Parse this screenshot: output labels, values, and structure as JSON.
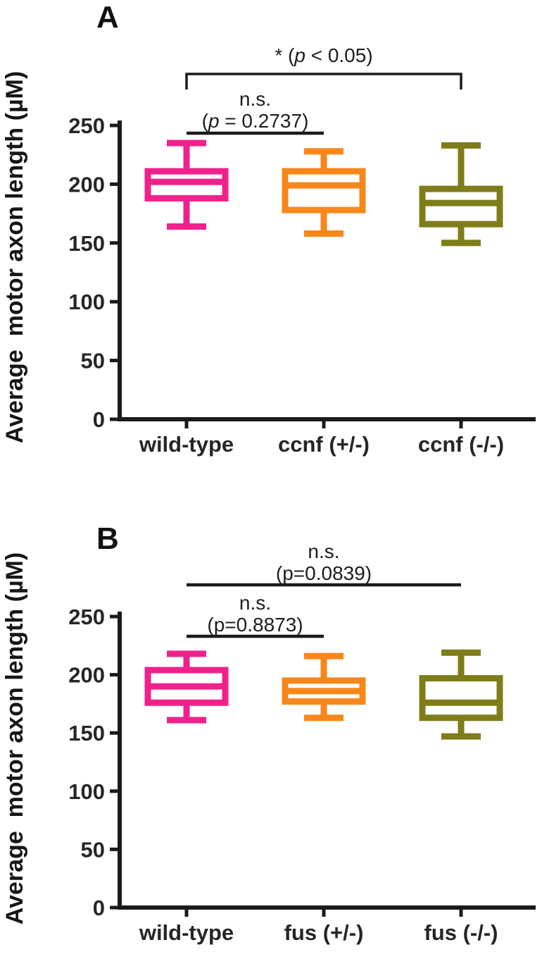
{
  "chart_data": [
    {
      "type": "box",
      "panel_label": "A",
      "title": "",
      "xlabel": "",
      "ylabel": "Average  motor axon length (µM)",
      "ylim": [
        0,
        250
      ],
      "yticks": [
        0,
        50,
        100,
        150,
        200,
        250
      ],
      "grid": false,
      "legend": "none",
      "categories": [
        "wild-type",
        "ccnf (+/-)",
        "ccnf (-/-)"
      ],
      "series": [
        {
          "name": "wild-type",
          "color": "#F0218C",
          "min": 164,
          "q1": 188,
          "median": 202,
          "q3": 211,
          "max": 235
        },
        {
          "name": "ccnf (+/-)",
          "color": "#F7871A",
          "min": 158,
          "q1": 178,
          "median": 199,
          "q3": 211,
          "max": 228
        },
        {
          "name": "ccnf (-/-)",
          "color": "#7E7D19",
          "min": 150,
          "q1": 166,
          "median": 184,
          "q3": 196,
          "max": 233
        }
      ],
      "annotations": [
        {
          "style": "bracket",
          "from": 0,
          "to": 2,
          "lines": [
            "* (p < 0.05)"
          ],
          "italic_p": true
        },
        {
          "style": "line",
          "from": 0,
          "to": 1,
          "lines": [
            "n.s.",
            "(p = 0.2737)"
          ],
          "italic_p": true
        }
      ]
    },
    {
      "type": "box",
      "panel_label": "B",
      "title": "",
      "xlabel": "",
      "ylabel": "Average  motor axon length (µM)",
      "ylim": [
        0,
        250
      ],
      "yticks": [
        0,
        50,
        100,
        150,
        200,
        250
      ],
      "grid": false,
      "legend": "none",
      "categories": [
        "wild-type",
        "fus (+/-)",
        "fus (-/-)"
      ],
      "series": [
        {
          "name": "wild-type",
          "color": "#F0218C",
          "min": 161,
          "q1": 176,
          "median": 190,
          "q3": 204,
          "max": 218
        },
        {
          "name": "fus (+/-)",
          "color": "#F7871A",
          "min": 163,
          "q1": 177,
          "median": 186,
          "q3": 195,
          "max": 216
        },
        {
          "name": "fus (-/-)",
          "color": "#7E7D19",
          "min": 147,
          "q1": 163,
          "median": 176,
          "q3": 197,
          "max": 219
        }
      ],
      "annotations": [
        {
          "style": "line",
          "from": 0,
          "to": 2,
          "lines": [
            "n.s.",
            "(p=0.0839)"
          ],
          "italic_p": false
        },
        {
          "style": "line",
          "from": 0,
          "to": 1,
          "lines": [
            "n.s.",
            "(p=0.8873)"
          ],
          "italic_p": false
        }
      ]
    }
  ]
}
